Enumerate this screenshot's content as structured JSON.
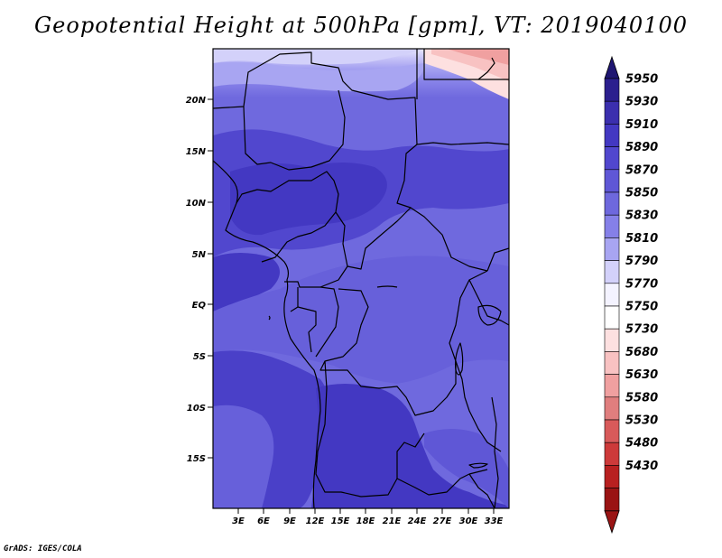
{
  "title": "Geopotential Height at 500hPa [gpm], VT: 2019040100",
  "credit": "GrADS: IGES/COLA",
  "map": {
    "lat_labels": [
      "20N",
      "15N",
      "10N",
      "5N",
      "EQ",
      "5S",
      "10S",
      "15S"
    ],
    "lon_labels": [
      "3E",
      "6E",
      "9E",
      "12E",
      "15E",
      "18E",
      "21E",
      "24E",
      "27E",
      "30E",
      "33E"
    ]
  },
  "colorbar": {
    "levels": [
      "5950",
      "5930",
      "5910",
      "5890",
      "5870",
      "5850",
      "5830",
      "5810",
      "5790",
      "5770",
      "5750",
      "5730",
      "5680",
      "5630",
      "5580",
      "5530",
      "5480",
      "5430"
    ],
    "colors": [
      "#2b1f8e",
      "#3b2fae",
      "#4338c2",
      "#5147ce",
      "#5f57d6",
      "#6e68dd",
      "#8580e8",
      "#a8a5f2",
      "#d3d1fa",
      "#f4f3ff",
      "#ffffff",
      "#fde0e0",
      "#f8c2c2",
      "#f0a0a0",
      "#e07e7e",
      "#d85a5a",
      "#cd3a3a",
      "#b82020",
      "#9a1414"
    ],
    "cap_top_color": "#1f1672",
    "cap_bottom_color": "#9a1414"
  }
}
